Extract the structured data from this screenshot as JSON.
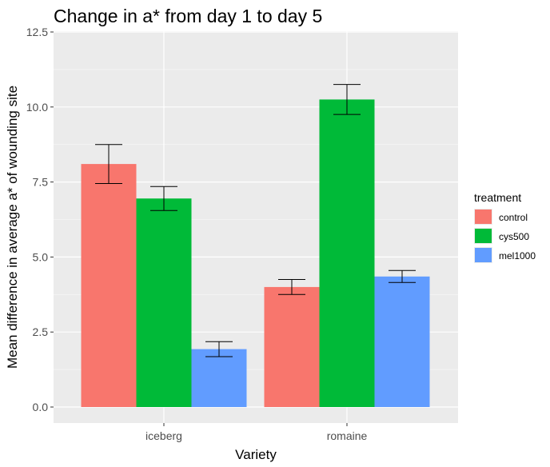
{
  "chart_data": {
    "type": "bar",
    "title": "Change in a* from day 1 to day 5",
    "xlabel": "Variety",
    "ylabel": "Mean difference in average a* of wounding site",
    "categories": [
      "iceberg",
      "romaine"
    ],
    "ylim": [
      0,
      12.5
    ],
    "yticks": [
      "0.0",
      "2.5",
      "5.0",
      "7.5",
      "10.0",
      "12.5"
    ],
    "grid": true,
    "legend": {
      "title": "treatment",
      "position": "right"
    },
    "series": [
      {
        "name": "control",
        "color": "#f8766d",
        "values": [
          8.1,
          4.0
        ],
        "error_low": [
          7.45,
          3.75
        ],
        "error_high": [
          8.75,
          4.25
        ]
      },
      {
        "name": "cys500",
        "color": "#00ba38",
        "values": [
          6.95,
          10.25
        ],
        "error_low": [
          6.55,
          9.75
        ],
        "error_high": [
          7.35,
          10.75
        ]
      },
      {
        "name": "mel1000",
        "color": "#619cff",
        "values": [
          1.93,
          4.35
        ],
        "error_low": [
          1.68,
          4.15
        ],
        "error_high": [
          2.18,
          4.55
        ]
      }
    ]
  }
}
